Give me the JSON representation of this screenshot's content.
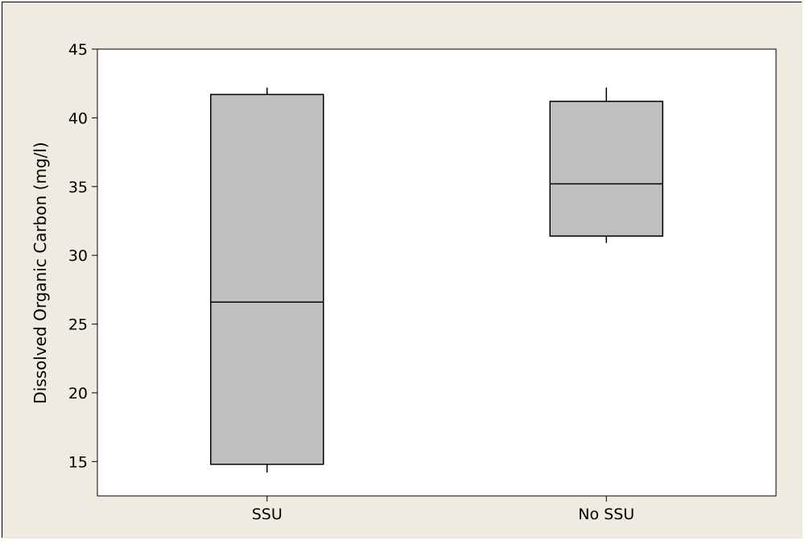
{
  "colors": {
    "background": "#efebe0",
    "plot_area": "#ffffff",
    "box_fill": "#c0c0c0",
    "stroke": "#000000"
  },
  "chart_data": {
    "type": "boxplot",
    "title": "",
    "xlabel": "",
    "ylabel": "Dissolved Organic Carbon (mg/l)",
    "ylim": [
      12.5,
      45
    ],
    "yticks": [
      15,
      20,
      25,
      30,
      35,
      40,
      45
    ],
    "categories": [
      "SSU",
      "No SSU"
    ],
    "boxes": [
      {
        "category": "SSU",
        "whisker_low": 14.2,
        "q1": 14.8,
        "median": 26.6,
        "q3": 41.7,
        "whisker_high": 42.2
      },
      {
        "category": "No SSU",
        "whisker_low": 30.9,
        "q1": 31.4,
        "median": 35.2,
        "q3": 41.2,
        "whisker_high": 42.2
      }
    ],
    "grid": false,
    "legend": "none"
  }
}
